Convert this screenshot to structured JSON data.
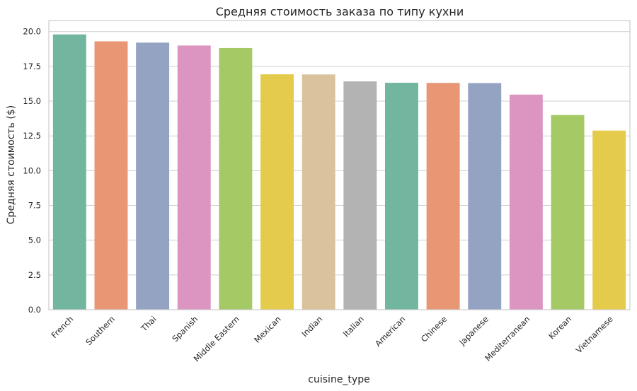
{
  "chart_data": {
    "type": "bar",
    "title": "Средняя стоимость заказа по типу кухни",
    "xlabel": "cuisine_type",
    "ylabel": "Средняя стоимость ($)",
    "ylim": [
      0,
      20.8
    ],
    "yticks": [
      "0.0",
      "2.5",
      "5.0",
      "7.5",
      "10.0",
      "12.5",
      "15.0",
      "17.5",
      "20.0"
    ],
    "ytick_values": [
      0,
      2.5,
      5,
      7.5,
      10,
      12.5,
      15,
      17.5,
      20
    ],
    "grid": "horizontal",
    "categories": [
      "French",
      "Southern",
      "Thai",
      "Spanish",
      "Middle Eastern",
      "Mexican",
      "Indian",
      "Italian",
      "American",
      "Chinese",
      "Japanese",
      "Mediterranean",
      "Korean",
      "Vietnamese"
    ],
    "values": [
      19.8,
      19.3,
      19.21,
      19.0,
      18.82,
      16.93,
      16.92,
      16.42,
      16.32,
      16.31,
      16.3,
      15.47,
      14.0,
      12.88
    ],
    "colors": [
      "#72b69f",
      "#e89674",
      "#95a3c3",
      "#dc95c0",
      "#a4c965",
      "#e5cb4b",
      "#d9c29c",
      "#b3b3b3",
      "#72b69f",
      "#e89674",
      "#95a3c3",
      "#dc95c0",
      "#a4c965",
      "#e5cb4b"
    ]
  }
}
